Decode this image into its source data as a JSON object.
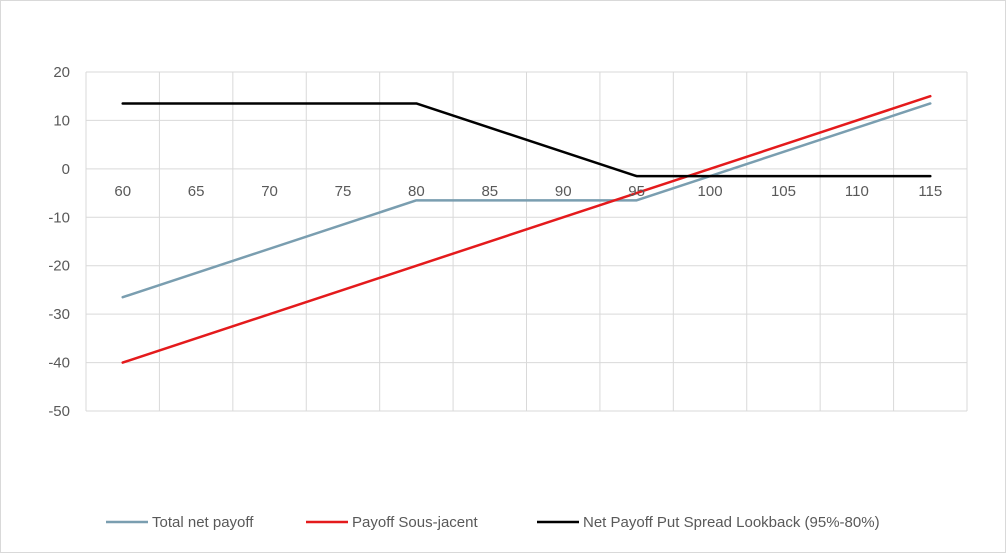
{
  "chart_data": {
    "type": "line",
    "x": [
      60,
      65,
      70,
      75,
      80,
      85,
      90,
      95,
      100,
      105,
      110,
      115
    ],
    "xlabel": "",
    "ylabel": "",
    "ylim": [
      -50,
      20
    ],
    "yticks": [
      20,
      10,
      0,
      -10,
      -20,
      -30,
      -40,
      -50
    ],
    "xlim": [
      57.5,
      117.5
    ],
    "grid": true,
    "legend_position": "bottom",
    "series": [
      {
        "name": "Total net payoff",
        "color": "#7a9eb0",
        "points": [
          [
            60,
            -26.5
          ],
          [
            80,
            -6.5
          ],
          [
            95,
            -6.5
          ],
          [
            115,
            13.5
          ]
        ]
      },
      {
        "name": "Payoff Sous-jacent",
        "color": "#e41a1c",
        "points": [
          [
            60,
            -40
          ],
          [
            115,
            15
          ]
        ]
      },
      {
        "name": "Net Payoff Put Spread Lookback (95%-80%)",
        "color": "#000000",
        "points": [
          [
            60,
            13.5
          ],
          [
            80,
            13.5
          ],
          [
            95,
            -1.5
          ],
          [
            115,
            -1.5
          ]
        ]
      }
    ]
  }
}
